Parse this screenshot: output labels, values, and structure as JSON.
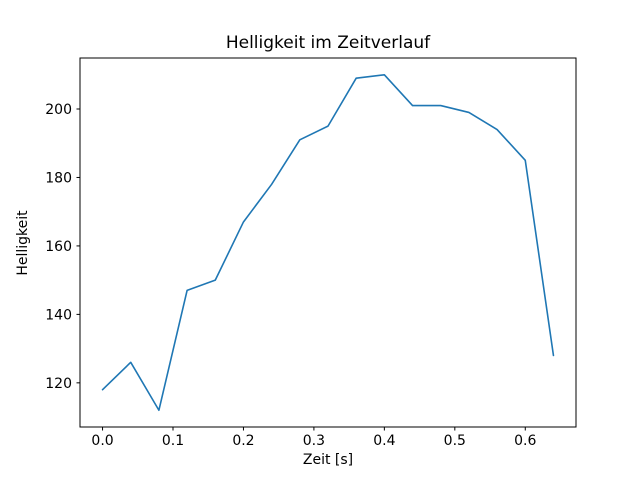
{
  "chart_data": {
    "type": "line",
    "title": "Helligkeit im Zeitverlauf",
    "xlabel": "Zeit [s]",
    "ylabel": "Helligkeit",
    "x": [
      0.0,
      0.04,
      0.08,
      0.12,
      0.16,
      0.2,
      0.24,
      0.28,
      0.32,
      0.36,
      0.4,
      0.44,
      0.48,
      0.52,
      0.56,
      0.6,
      0.64
    ],
    "y": [
      118,
      126,
      112,
      147,
      150,
      167,
      178,
      191,
      195,
      209,
      210,
      201,
      201,
      199,
      194,
      185,
      128
    ],
    "xlim": [
      -0.032,
      0.672
    ],
    "ylim": [
      107.1,
      214.9
    ],
    "xticks": [
      0.0,
      0.1,
      0.2,
      0.3,
      0.4,
      0.5,
      0.6
    ],
    "xtick_labels": [
      "0.0",
      "0.1",
      "0.2",
      "0.3",
      "0.4",
      "0.5",
      "0.6"
    ],
    "yticks": [
      120,
      140,
      160,
      180,
      200
    ],
    "ytick_labels": [
      "120",
      "140",
      "160",
      "180",
      "200"
    ],
    "line_color": "#1f77b4",
    "axis_color": "#000000",
    "background_color": "#ffffff",
    "grid": false,
    "legend_position": "none"
  }
}
